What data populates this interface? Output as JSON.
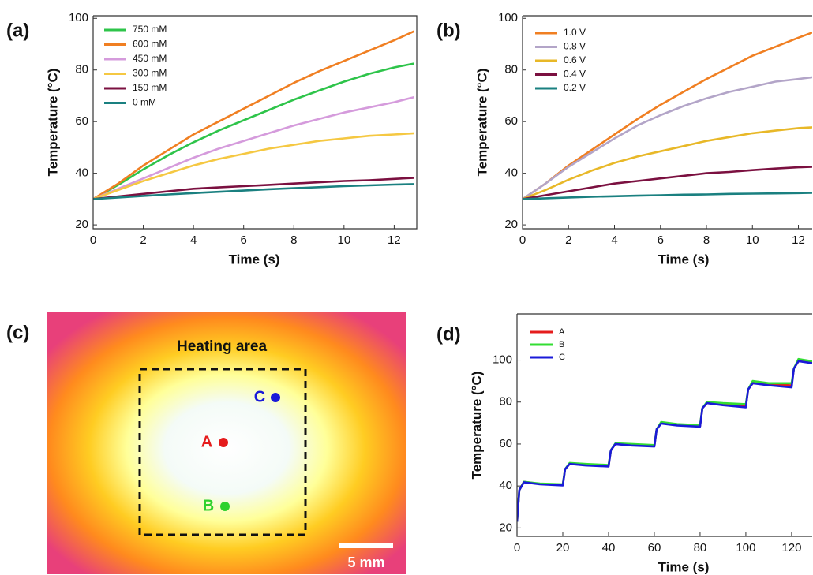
{
  "chart_data": [
    {
      "type": "line",
      "panel_label": "(a)",
      "x_label": "Time (s)",
      "y_label": "Temperature (°C)",
      "x": [
        0,
        1,
        2,
        3,
        4,
        5,
        6,
        7,
        8,
        9,
        10,
        11,
        12,
        12.8
      ],
      "series": [
        {
          "name": "750 mM",
          "color": "#2ec44a",
          "values": [
            30,
            35.5,
            41.5,
            47,
            52,
            56.5,
            60.5,
            64.5,
            68.5,
            72,
            75.5,
            78.5,
            81,
            82.5
          ]
        },
        {
          "name": "600 mM",
          "color": "#f07f22",
          "values": [
            30,
            36,
            43,
            49,
            55,
            60,
            65,
            70,
            75,
            79.5,
            83.5,
            87.5,
            91.5,
            95
          ]
        },
        {
          "name": "450 mM",
          "color": "#d59bdc",
          "values": [
            30,
            34,
            38,
            42,
            46,
            49.5,
            52.5,
            55.5,
            58.5,
            61,
            63.5,
            65.5,
            67.5,
            69.5
          ]
        },
        {
          "name": "300 mM",
          "color": "#f5c842",
          "values": [
            30,
            33.5,
            37,
            40,
            43,
            45.5,
            47.5,
            49.5,
            51,
            52.5,
            53.5,
            54.5,
            55,
            55.5
          ]
        },
        {
          "name": "150 mM",
          "color": "#7b1040",
          "values": [
            30,
            31,
            32,
            33,
            34,
            34.5,
            35,
            35.5,
            36,
            36.5,
            37,
            37.3,
            37.8,
            38.2
          ]
        },
        {
          "name": "0 mM",
          "color": "#1a8080",
          "values": [
            30,
            30.6,
            31.2,
            31.8,
            32.3,
            32.8,
            33.3,
            33.8,
            34.2,
            34.6,
            35,
            35.3,
            35.6,
            35.8
          ]
        }
      ],
      "xlim": [
        0,
        12.9
      ],
      "ylim": [
        18.5,
        101
      ],
      "xticks": [
        0,
        2,
        4,
        6,
        8,
        10,
        12
      ],
      "yticks": [
        20,
        40,
        60,
        80,
        100
      ],
      "legend": "upper left"
    },
    {
      "type": "line",
      "panel_label": "(b)",
      "x_label": "Time (s)",
      "y_label": "Temperature (°C)",
      "x": [
        0,
        1,
        2,
        3,
        4,
        5,
        6,
        7,
        8,
        9,
        10,
        11,
        12,
        12.6
      ],
      "series": [
        {
          "name": "1.0 V",
          "color": "#f07f22",
          "values": [
            30,
            36,
            43,
            49,
            55,
            61,
            66.5,
            71.5,
            76.5,
            81,
            85.5,
            89,
            92.5,
            94.5
          ]
        },
        {
          "name": "0.8 V",
          "color": "#b3a5c8",
          "values": [
            30,
            36,
            42.5,
            48,
            53.5,
            58.5,
            62.5,
            66,
            69,
            71.5,
            73.5,
            75.5,
            76.5,
            77.2
          ]
        },
        {
          "name": "0.6 V",
          "color": "#e8b828",
          "values": [
            30,
            33.5,
            37.5,
            41,
            44,
            46.5,
            48.5,
            50.5,
            52.5,
            54,
            55.5,
            56.5,
            57.5,
            57.8
          ]
        },
        {
          "name": "0.4 V",
          "color": "#7b1040",
          "values": [
            30,
            31.5,
            33,
            34.5,
            36,
            37,
            38,
            39,
            40,
            40.5,
            41.2,
            41.8,
            42.3,
            42.5
          ]
        },
        {
          "name": "0.2 V",
          "color": "#1a8080",
          "values": [
            30,
            30.3,
            30.6,
            30.9,
            31.1,
            31.3,
            31.5,
            31.7,
            31.8,
            32,
            32.1,
            32.2,
            32.3,
            32.4
          ]
        }
      ],
      "xlim": [
        0,
        12.6
      ],
      "ylim": [
        18.5,
        101
      ],
      "xticks": [
        0,
        2,
        4,
        6,
        8,
        10,
        12
      ],
      "yticks": [
        20,
        40,
        60,
        80,
        100
      ],
      "legend": "upper left"
    },
    {
      "type": "line",
      "panel_label": "(d)",
      "x_label": "Time (s)",
      "y_label": "Temperature (°C)",
      "x": [
        0,
        1,
        3,
        10,
        20,
        21,
        23,
        30,
        40,
        41,
        43,
        50,
        60,
        61,
        63,
        70,
        80,
        81,
        83,
        90,
        100,
        101,
        103,
        110,
        120,
        121,
        123,
        129
      ],
      "series": [
        {
          "name": "A",
          "color": "#e51c1c",
          "values": [
            23,
            38,
            42,
            41,
            40.5,
            48,
            50.5,
            50,
            49.5,
            57,
            60,
            59.5,
            59,
            67,
            70,
            69,
            68.5,
            77,
            79.5,
            79,
            78,
            86,
            89,
            88.5,
            88,
            96,
            99.5,
            99
          ]
        },
        {
          "name": "B",
          "color": "#33dd33",
          "values": [
            23,
            38,
            42,
            41.2,
            40.8,
            48,
            51,
            50.5,
            50,
            57,
            60.3,
            60,
            59.5,
            67,
            70.5,
            69.5,
            69,
            77,
            80,
            79.5,
            79,
            86,
            90,
            89,
            89,
            96,
            100.5,
            99.5
          ]
        },
        {
          "name": "C",
          "color": "#1a1ad9",
          "values": [
            23,
            38,
            41.8,
            40.8,
            40.3,
            48,
            50.5,
            49.8,
            49.3,
            57,
            60,
            59.3,
            58.8,
            67,
            69.8,
            68.8,
            68.3,
            77,
            79.5,
            78.5,
            77.5,
            86,
            89,
            88,
            87,
            96,
            99.5,
            98.5
          ]
        }
      ],
      "xlim": [
        0,
        129
      ],
      "ylim": [
        16,
        122
      ],
      "xticks": [
        0,
        20,
        40,
        60,
        80,
        100,
        120
      ],
      "yticks": [
        20,
        40,
        60,
        80,
        100
      ],
      "legend": "upper left"
    }
  ],
  "image_panel": {
    "panel_label": "(c)",
    "title": "Heating area",
    "points": [
      "A",
      "B",
      "C"
    ],
    "scale_bar": "5 mm"
  }
}
